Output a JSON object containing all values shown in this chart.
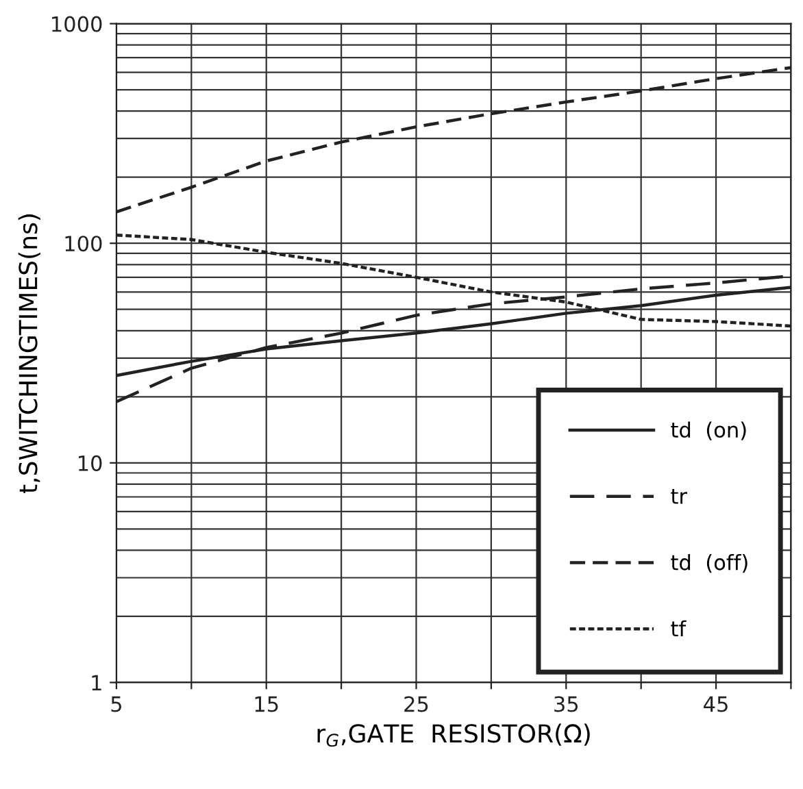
{
  "chart_data": {
    "type": "line",
    "xlabel": "r$_{G}$,GATE  RESISTOR(Ω)",
    "ylabel": "t,SWITCHINGTIMES(ns)",
    "x": [
      5,
      10,
      15,
      20,
      25,
      30,
      35,
      40,
      45,
      50
    ],
    "series": [
      {
        "name": "td  (on)",
        "color": "#222222",
        "line_style": "solid",
        "values": [
          25,
          29,
          33,
          36,
          39,
          43,
          48,
          52,
          58,
          63
        ]
      },
      {
        "name": "tr",
        "color": "#222222",
        "line_style": "dashed",
        "values": [
          19,
          27,
          33.5,
          39,
          47,
          53,
          57,
          62,
          66,
          71
        ]
      },
      {
        "name": "td  (off)",
        "color": "#222222",
        "line_style": "dashed",
        "values": [
          139,
          180,
          237,
          289,
          339,
          389,
          440,
          494,
          562,
          631
        ]
      },
      {
        "name": "tf",
        "color": "#222222",
        "line_style": "dotted",
        "values": [
          109,
          104,
          91,
          81,
          70,
          60,
          54,
          45,
          44,
          42
        ]
      }
    ],
    "log": "y",
    "xlim": [
      5,
      50
    ],
    "ylim": [
      1,
      1000
    ],
    "xticks": [
      5,
      {
        "value": 10,
        "label": null
      },
      15,
      {
        "value": 20,
        "label": null
      },
      25,
      {
        "value": 30,
        "label": null
      },
      35,
      {
        "value": 40,
        "label": null
      },
      45,
      {
        "value": 50,
        "label": null
      }
    ],
    "yticks": [
      1,
      10,
      100,
      1000
    ],
    "grid": true,
    "legend": "bottom right",
    "marker": "none"
  }
}
